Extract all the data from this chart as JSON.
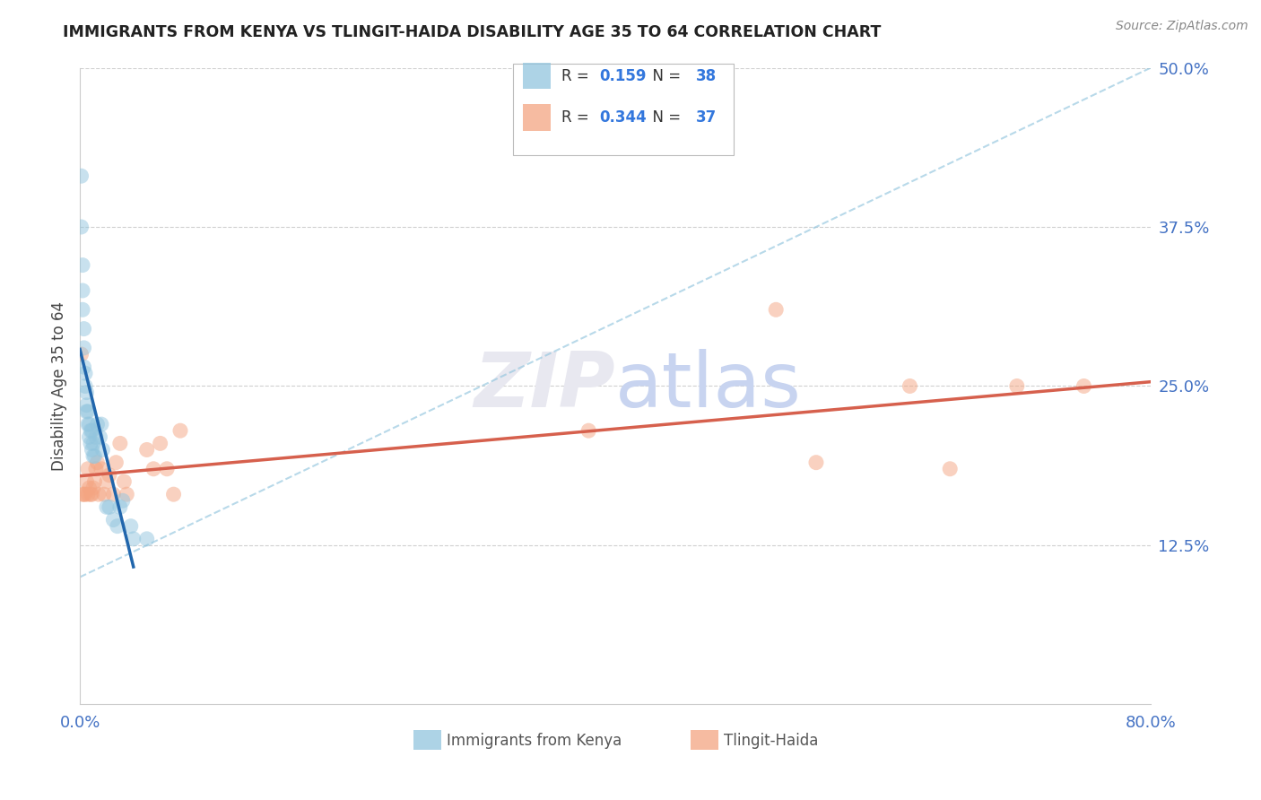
{
  "title": "IMMIGRANTS FROM KENYA VS TLINGIT-HAIDA DISABILITY AGE 35 TO 64 CORRELATION CHART",
  "source": "Source: ZipAtlas.com",
  "ylabel": "Disability Age 35 to 64",
  "xlim": [
    0.0,
    0.8
  ],
  "ylim": [
    0.0,
    0.5
  ],
  "kenya_R": 0.159,
  "kenya_N": 38,
  "tlingit_R": 0.344,
  "tlingit_N": 37,
  "kenya_color": "#92c5de",
  "tlingit_color": "#f4a582",
  "kenya_line_color": "#2166ac",
  "tlingit_line_color": "#d6604d",
  "diag_line_color": "#92c5de",
  "kenya_x": [
    0.001,
    0.001,
    0.002,
    0.002,
    0.002,
    0.003,
    0.003,
    0.003,
    0.004,
    0.004,
    0.005,
    0.005,
    0.005,
    0.006,
    0.006,
    0.007,
    0.007,
    0.008,
    0.008,
    0.009,
    0.009,
    0.01,
    0.01,
    0.011,
    0.012,
    0.013,
    0.015,
    0.016,
    0.017,
    0.02,
    0.022,
    0.025,
    0.028,
    0.03,
    0.032,
    0.038,
    0.04,
    0.05
  ],
  "kenya_y": [
    0.415,
    0.375,
    0.345,
    0.325,
    0.31,
    0.295,
    0.28,
    0.265,
    0.26,
    0.25,
    0.235,
    0.245,
    0.23,
    0.23,
    0.22,
    0.22,
    0.21,
    0.215,
    0.205,
    0.215,
    0.2,
    0.205,
    0.195,
    0.195,
    0.21,
    0.22,
    0.21,
    0.22,
    0.2,
    0.155,
    0.155,
    0.145,
    0.14,
    0.155,
    0.16,
    0.14,
    0.13,
    0.13
  ],
  "tlingit_x": [
    0.001,
    0.002,
    0.003,
    0.004,
    0.005,
    0.006,
    0.006,
    0.007,
    0.008,
    0.009,
    0.01,
    0.011,
    0.012,
    0.013,
    0.014,
    0.016,
    0.018,
    0.02,
    0.022,
    0.025,
    0.027,
    0.03,
    0.033,
    0.035,
    0.05,
    0.055,
    0.06,
    0.065,
    0.07,
    0.075,
    0.38,
    0.52,
    0.55,
    0.62,
    0.65,
    0.7,
    0.75
  ],
  "tlingit_y": [
    0.275,
    0.165,
    0.165,
    0.165,
    0.175,
    0.165,
    0.185,
    0.17,
    0.165,
    0.165,
    0.17,
    0.175,
    0.185,
    0.19,
    0.165,
    0.185,
    0.165,
    0.175,
    0.18,
    0.165,
    0.19,
    0.205,
    0.175,
    0.165,
    0.2,
    0.185,
    0.205,
    0.185,
    0.165,
    0.215,
    0.215,
    0.31,
    0.19,
    0.25,
    0.185,
    0.25,
    0.25
  ],
  "background_color": "#ffffff",
  "grid_color": "#d0d0d0",
  "watermark_text": "ZIPatlas",
  "watermark_color": "#e8e8f0"
}
